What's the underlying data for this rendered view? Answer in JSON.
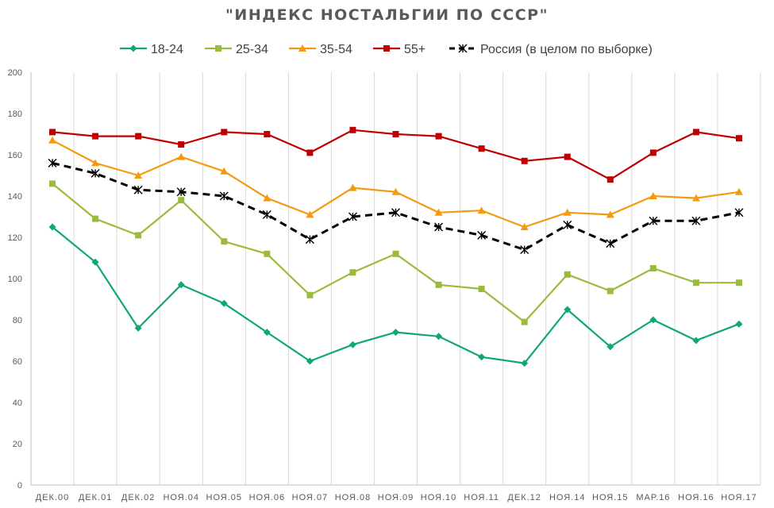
{
  "chart_data": {
    "type": "line",
    "title": "\"ИНДЕКС НОСТАЛЬГИИ ПО СССР\"",
    "xlabel": "",
    "ylabel": "",
    "ylim": [
      0,
      200
    ],
    "yticks": [
      0,
      20,
      40,
      60,
      80,
      100,
      120,
      140,
      160,
      180,
      200
    ],
    "grid": "vertical",
    "legend_position": "top",
    "categories": [
      "ДЕК.00",
      "ДЕК.01",
      "ДЕК.02",
      "НОЯ.04",
      "НОЯ.05",
      "НОЯ.06",
      "НОЯ.07",
      "НОЯ.08",
      "НОЯ.09",
      "НОЯ.10",
      "НОЯ.11",
      "ДЕК.12",
      "НОЯ.14",
      "НОЯ.15",
      "МАР.16",
      "НОЯ.16",
      "НОЯ.17"
    ],
    "series": [
      {
        "name": "18-24",
        "color": "#11a86f",
        "marker": "diamond",
        "dash": false,
        "values": [
          125,
          108,
          76,
          97,
          88,
          74,
          60,
          68,
          74,
          72,
          62,
          59,
          85,
          67,
          80,
          70,
          78
        ]
      },
      {
        "name": "25-34",
        "color": "#9bbb3b",
        "marker": "square",
        "dash": false,
        "values": [
          146,
          129,
          121,
          138,
          118,
          112,
          92,
          103,
          112,
          97,
          95,
          79,
          102,
          94,
          105,
          98,
          98
        ]
      },
      {
        "name": "35-54",
        "color": "#f59a0e",
        "marker": "triangle",
        "dash": false,
        "values": [
          167,
          156,
          150,
          159,
          152,
          139,
          131,
          144,
          142,
          132,
          133,
          125,
          132,
          131,
          140,
          139,
          142
        ]
      },
      {
        "name": "55+",
        "color": "#c00000",
        "marker": "square",
        "dash": false,
        "values": [
          171,
          169,
          169,
          165,
          171,
          170,
          161,
          172,
          170,
          169,
          163,
          157,
          159,
          148,
          161,
          171,
          168
        ]
      },
      {
        "name": "Россия (в целом по выборке)",
        "color": "#000000",
        "marker": "star",
        "dash": true,
        "values": [
          156,
          151,
          143,
          142,
          140,
          131,
          119,
          130,
          132,
          125,
          121,
          114,
          126,
          117,
          128,
          128,
          132
        ]
      }
    ]
  }
}
